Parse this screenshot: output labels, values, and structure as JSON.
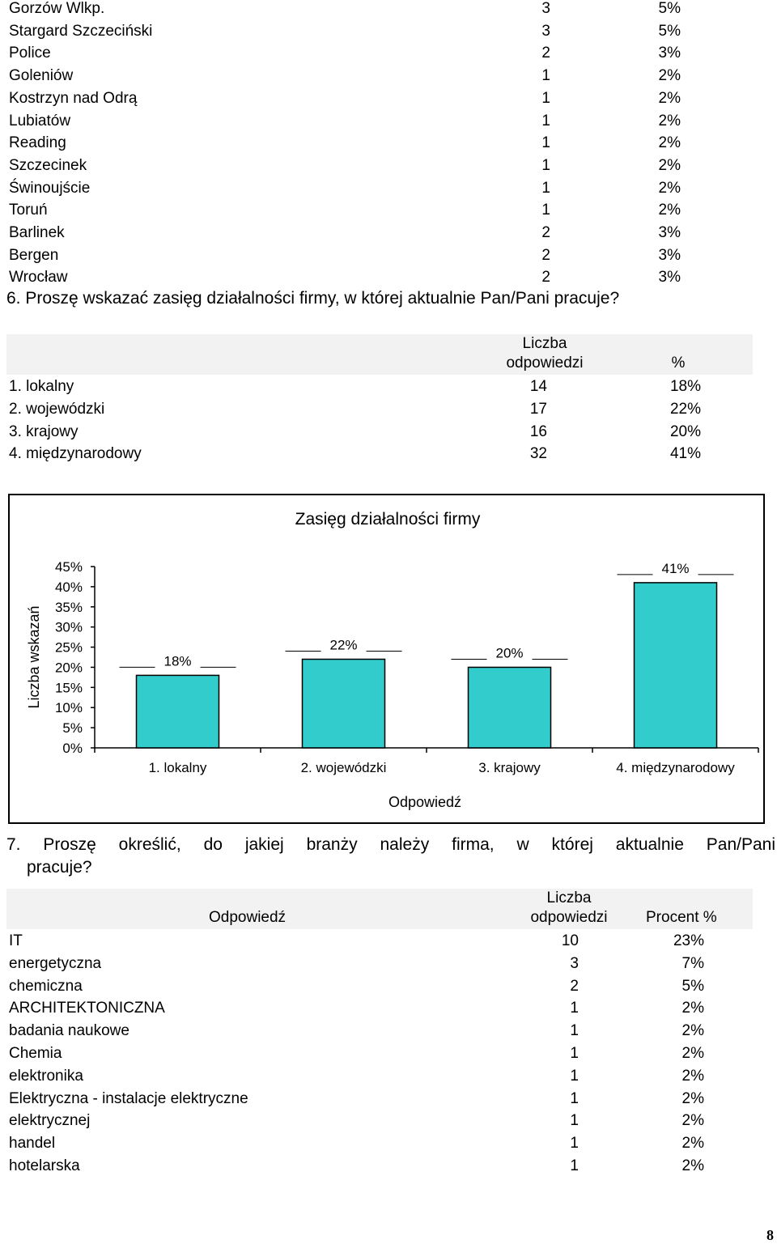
{
  "cities": [
    {
      "name": "Gorzów Wlkp.",
      "count": "3",
      "pct": "5%"
    },
    {
      "name": "Stargard Szczeciński",
      "count": "3",
      "pct": "5%"
    },
    {
      "name": "Police",
      "count": "2",
      "pct": "3%"
    },
    {
      "name": "Goleniów",
      "count": "1",
      "pct": "2%"
    },
    {
      "name": "Kostrzyn nad Odrą",
      "count": "1",
      "pct": "2%"
    },
    {
      "name": "Lubiatów",
      "count": "1",
      "pct": "2%"
    },
    {
      "name": "Reading",
      "count": "1",
      "pct": "2%"
    },
    {
      "name": "Szczecinek",
      "count": "1",
      "pct": "2%"
    },
    {
      "name": "Świnoujście",
      "count": "1",
      "pct": "2%"
    },
    {
      "name": "Toruń",
      "count": "1",
      "pct": "2%"
    },
    {
      "name": "Barlinek",
      "count": "2",
      "pct": "3%"
    },
    {
      "name": "Bergen",
      "count": "2",
      "pct": "3%"
    },
    {
      "name": "Wrocław",
      "count": "2",
      "pct": "3%"
    }
  ],
  "q6": {
    "question": "6. Proszę wskazać zasięg działalności firmy, w której aktualnie Pan/Pani pracuje?",
    "header_count_1": "Liczba",
    "header_count_2": "odpowiedzi",
    "header_pct": "%",
    "rows": [
      {
        "label": "1. lokalny",
        "count": "14",
        "pct": "18%"
      },
      {
        "label": "2. wojewódzki",
        "count": "17",
        "pct": "22%"
      },
      {
        "label": "3. krajowy",
        "count": "16",
        "pct": "20%"
      },
      {
        "label": "4. międzynarodowy",
        "count": "32",
        "pct": "41%"
      }
    ]
  },
  "chart_data": {
    "type": "bar",
    "title": "Zasięg działalności firmy",
    "xlabel": "Odpowiedź",
    "ylabel": "Liczba wskazań",
    "categories": [
      "1. lokalny",
      "2. wojewódzki",
      "3. krajowy",
      "4. międzynarodowy"
    ],
    "values": [
      18,
      22,
      20,
      41
    ],
    "data_labels": [
      "18%",
      "22%",
      "20%",
      "41%"
    ],
    "ylim": [
      0,
      45
    ],
    "yticks": [
      "0%",
      "5%",
      "10%",
      "15%",
      "20%",
      "25%",
      "30%",
      "35%",
      "40%",
      "45%"
    ],
    "bar_color": "#33CCCC",
    "grid": false,
    "legend": "none"
  },
  "q7": {
    "question_line1": "7. Proszę określić, do jakiej branży należy firma, w której aktualnie Pan/Pani",
    "question_line2": "pracuje?",
    "header_answer": "Odpowiedź",
    "header_count_1": "Liczba",
    "header_count_2": "odpowiedzi",
    "header_pct": "Procent %",
    "rows": [
      {
        "label": "IT",
        "count": "10",
        "pct": "23%"
      },
      {
        "label": "energetyczna",
        "count": "3",
        "pct": "7%"
      },
      {
        "label": "chemiczna",
        "count": "2",
        "pct": "5%"
      },
      {
        "label": "ARCHITEKTONICZNA",
        "count": "1",
        "pct": "2%"
      },
      {
        "label": "badania naukowe",
        "count": "1",
        "pct": "2%"
      },
      {
        "label": "Chemia",
        "count": "1",
        "pct": "2%"
      },
      {
        "label": "elektronika",
        "count": "1",
        "pct": "2%"
      },
      {
        "label": "Elektryczna - instalacje elektryczne",
        "count": "1",
        "pct": "2%"
      },
      {
        "label": "elektrycznej",
        "count": "1",
        "pct": "2%"
      },
      {
        "label": "handel",
        "count": "1",
        "pct": "2%"
      },
      {
        "label": "hotelarska",
        "count": "1",
        "pct": "2%"
      }
    ]
  },
  "page_number": "8"
}
